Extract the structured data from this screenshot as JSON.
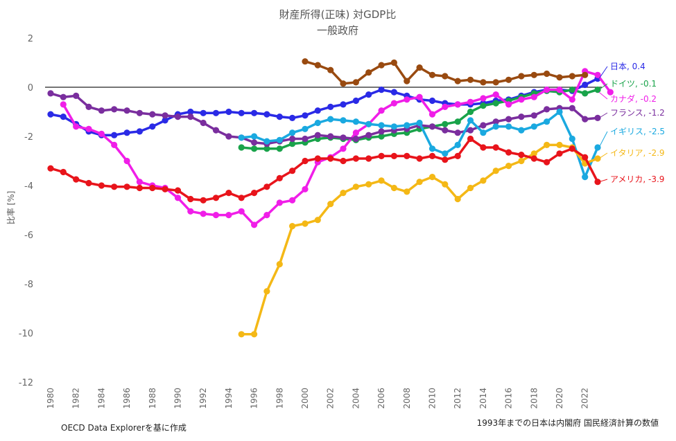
{
  "chart_data": {
    "type": "line",
    "title": "財産所得(正味) 対GDP比",
    "subtitle": "一般政府",
    "xlabel": "",
    "ylabel": "比率 [%]",
    "ylim": [
      -12,
      2
    ],
    "yticks": [
      2,
      0,
      -2,
      -4,
      -6,
      -8,
      -10,
      -12
    ],
    "xlim": [
      1980,
      2023
    ],
    "xticks": [
      1980,
      1982,
      1984,
      1986,
      1988,
      1990,
      1992,
      1994,
      1996,
      1998,
      2000,
      2002,
      2004,
      2006,
      2008,
      2010,
      2012,
      2014,
      2016,
      2018,
      2020,
      2022
    ],
    "grid": false,
    "zero_line": true,
    "series": [
      {
        "name": "日本",
        "label": "日本, 0.4",
        "color": "#2a2ae6",
        "start": 1980,
        "values": [
          -1.1,
          -1.2,
          -1.5,
          -1.8,
          -1.95,
          -1.95,
          -1.85,
          -1.8,
          -1.6,
          -1.35,
          -1.1,
          -1.0,
          -1.05,
          -1.05,
          -1.0,
          -1.05,
          -1.05,
          -1.1,
          -1.2,
          -1.25,
          -1.15,
          -0.95,
          -0.8,
          -0.7,
          -0.55,
          -0.3,
          -0.1,
          -0.2,
          -0.35,
          -0.5,
          -0.55,
          -0.65,
          -0.7,
          -0.7,
          -0.65,
          -0.55,
          -0.5,
          -0.35,
          -0.2,
          -0.1,
          -0.1,
          -0.15,
          0.1,
          0.35
        ]
      },
      {
        "name": "ドイツ",
        "label": "ドイツ, -0.1",
        "color": "#19a34a",
        "start": 1995,
        "values": [
          -2.45,
          -2.5,
          -2.5,
          -2.5,
          -2.3,
          -2.25,
          -2.1,
          -2.05,
          -2.1,
          -2.15,
          -2.05,
          -2.0,
          -1.9,
          -1.85,
          -1.7,
          -1.6,
          -1.5,
          -1.4,
          -1.0,
          -0.75,
          -0.65,
          -0.55,
          -0.4,
          -0.25,
          -0.15,
          -0.2,
          -0.1,
          -0.25,
          -0.1
        ]
      },
      {
        "name": "カナダ",
        "label": "カナダ, -0.2",
        "color": "#f01ee8",
        "start": 1981,
        "values": [
          -0.7,
          -1.6,
          -1.7,
          -1.9,
          -2.35,
          -3.0,
          -3.85,
          -4.0,
          -4.1,
          -4.5,
          -5.05,
          -5.15,
          -5.2,
          -5.2,
          -5.05,
          -5.6,
          -5.2,
          -4.7,
          -4.6,
          -4.15,
          -3.05,
          -2.85,
          -2.5,
          -1.85,
          -1.5,
          -0.95,
          -0.65,
          -0.5,
          -0.4,
          -1.1,
          -0.8,
          -0.7,
          -0.6,
          -0.45,
          -0.3,
          -0.7,
          -0.5,
          -0.4,
          -0.1,
          -0.1,
          -0.5,
          0.65,
          0.5,
          -0.2
        ]
      },
      {
        "name": "フランス",
        "label": "フランス, -1.2",
        "color": "#7a2e9e",
        "start": 1980,
        "values": [
          -0.25,
          -0.4,
          -0.35,
          -0.8,
          -0.95,
          -0.9,
          -0.95,
          -1.05,
          -1.1,
          -1.15,
          -1.2,
          -1.2,
          -1.45,
          -1.75,
          -2.0,
          -2.05,
          -2.25,
          -2.3,
          -2.2,
          -2.1,
          -2.1,
          -1.95,
          -2.0,
          -2.05,
          -2.1,
          -1.95,
          -1.8,
          -1.75,
          -1.7,
          -1.55,
          -1.6,
          -1.75,
          -1.85,
          -1.75,
          -1.55,
          -1.4,
          -1.3,
          -1.2,
          -1.15,
          -0.9,
          -0.85,
          -0.85,
          -1.3,
          -1.25
        ]
      },
      {
        "name": "イギリス",
        "label": "イギリス, -2.5",
        "color": "#1aa9e0",
        "start": 1995,
        "values": [
          -2.05,
          -2.0,
          -2.2,
          -2.15,
          -1.85,
          -1.7,
          -1.45,
          -1.3,
          -1.35,
          -1.4,
          -1.5,
          -1.55,
          -1.6,
          -1.55,
          -1.45,
          -2.5,
          -2.7,
          -2.35,
          -1.35,
          -1.85,
          -1.6,
          -1.6,
          -1.75,
          -1.6,
          -1.4,
          -1.0,
          -2.1,
          -3.65,
          -2.45
        ]
      },
      {
        "name": "イタリア",
        "label": "イタリア, -2.9",
        "color": "#f4b816",
        "start": 1995,
        "values": [
          -10.05,
          -10.05,
          -8.3,
          -7.2,
          -5.65,
          -5.55,
          -5.4,
          -4.75,
          -4.3,
          -4.05,
          -3.95,
          -3.8,
          -4.1,
          -4.25,
          -3.85,
          -3.65,
          -3.95,
          -4.55,
          -4.1,
          -3.8,
          -3.4,
          -3.2,
          -3.0,
          -2.7,
          -2.35,
          -2.35,
          -2.45,
          -3.1,
          -2.9
        ]
      },
      {
        "name": "アメリカ",
        "label": "アメリカ, -3.9",
        "color": "#e8141b",
        "start": 1980,
        "values": [
          -3.3,
          -3.45,
          -3.75,
          -3.9,
          -4.0,
          -4.05,
          -4.05,
          -4.1,
          -4.1,
          -4.15,
          -4.2,
          -4.55,
          -4.6,
          -4.5,
          -4.3,
          -4.5,
          -4.3,
          -4.05,
          -3.7,
          -3.4,
          -3.0,
          -2.9,
          -2.9,
          -3.0,
          -2.9,
          -2.9,
          -2.8,
          -2.8,
          -2.8,
          -2.9,
          -2.8,
          -2.95,
          -2.8,
          -2.1,
          -2.45,
          -2.45,
          -2.65,
          -2.75,
          -2.9,
          -3.05,
          -2.7,
          -2.5,
          -2.85,
          -3.85
        ]
      },
      {
        "name": "(unlabeled)",
        "label": "",
        "color": "#994a10",
        "start": 2000,
        "values": [
          1.05,
          0.9,
          0.7,
          0.15,
          0.2,
          0.6,
          0.9,
          1.0,
          0.25,
          0.8,
          0.5,
          0.45,
          0.25,
          0.3,
          0.2,
          0.2,
          0.3,
          0.45,
          0.5,
          0.55,
          0.4,
          0.45,
          0.5
        ]
      }
    ]
  },
  "notes": {
    "source": "OECD Data Explorerを基に作成",
    "japan_note": "1993年までの日本は内閣府 国民経済計算の数値"
  }
}
